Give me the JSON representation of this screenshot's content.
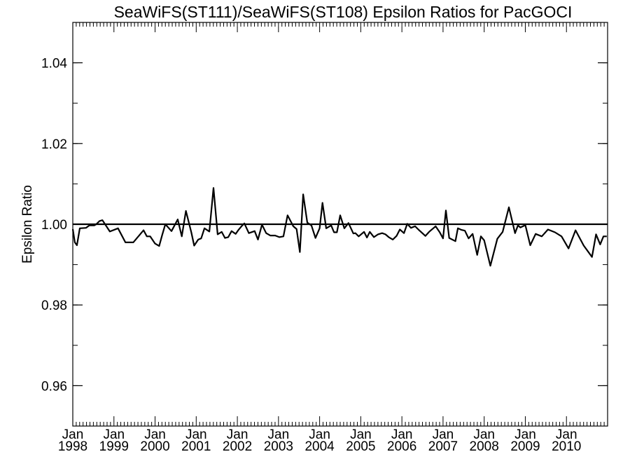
{
  "chart_data": {
    "type": "line",
    "title": "SeaWiFS(ST111)/SeaWiFS(ST108)  Epsilon Ratios for PacGOCI",
    "ylabel": "Epsilon Ratio",
    "xlabel": "",
    "xlim": [
      1998.0,
      2011.0
    ],
    "ylim": [
      0.95,
      1.05
    ],
    "yticks": [
      0.96,
      0.98,
      1.0,
      1.02,
      1.04
    ],
    "ytick_labels": [
      "0.96",
      "0.98",
      "1.00",
      "1.02",
      "1.04"
    ],
    "xtick_labels": [
      {
        "month": "Jan",
        "year": "1998"
      },
      {
        "month": "Jan",
        "year": "1999"
      },
      {
        "month": "Jan",
        "year": "2000"
      },
      {
        "month": "Jan",
        "year": "2001"
      },
      {
        "month": "Jan",
        "year": "2002"
      },
      {
        "month": "Jan",
        "year": "2003"
      },
      {
        "month": "Jan",
        "year": "2004"
      },
      {
        "month": "Jan",
        "year": "2005"
      },
      {
        "month": "Jan",
        "year": "2006"
      },
      {
        "month": "Jan",
        "year": "2007"
      },
      {
        "month": "Jan",
        "year": "2008"
      },
      {
        "month": "Jan",
        "year": "2009"
      },
      {
        "month": "Jan",
        "year": "2010"
      }
    ],
    "reference_line": 1.0,
    "grid": false,
    "series": [
      {
        "x": [
          1998.0,
          1998.05,
          1998.1,
          1998.17,
          1998.32,
          1998.4,
          1998.52,
          1998.57,
          1998.65,
          1998.72,
          1998.9,
          1999.1,
          1999.28,
          1999.47,
          1999.72,
          1999.8,
          1999.88,
          2000.0,
          2000.1,
          2000.17,
          2000.25,
          2000.4,
          2000.55,
          2000.65,
          2000.75,
          2000.88,
          2000.95,
          2001.05,
          2001.12,
          2001.2,
          2001.32,
          2001.42,
          2001.52,
          2001.62,
          2001.7,
          2001.78,
          2001.86,
          2001.96,
          2002.02,
          2002.1,
          2002.17,
          2002.28,
          2002.42,
          2002.5,
          2002.6,
          2002.7,
          2002.8,
          2002.92,
          2003.02,
          2003.12,
          2003.22,
          2003.36,
          2003.44,
          2003.52,
          2003.6,
          2003.7,
          2003.8,
          2003.9,
          2004.0,
          2004.07,
          2004.16,
          2004.28,
          2004.35,
          2004.42,
          2004.5,
          2004.6,
          2004.7,
          2004.82,
          2004.87,
          2004.95,
          2005.08,
          2005.15,
          2005.22,
          2005.32,
          2005.42,
          2005.52,
          2005.6,
          2005.68,
          2005.78,
          2005.87,
          2005.95,
          2006.05,
          2006.13,
          2006.22,
          2006.32,
          2006.42,
          2006.57,
          2006.67,
          2006.82,
          2006.92,
          2007.0,
          2007.07,
          2007.15,
          2007.3,
          2007.36,
          2007.45,
          2007.53,
          2007.62,
          2007.72,
          2007.83,
          2007.92,
          2008.0,
          2008.15,
          2008.32,
          2008.45,
          2008.6,
          2008.75,
          2008.82,
          2008.88,
          2009.0,
          2009.12,
          2009.25,
          2009.4,
          2009.55,
          2009.72,
          2009.88,
          2010.05,
          2010.22,
          2010.42,
          2010.62,
          2010.72,
          2010.82,
          2010.9,
          2010.98
        ],
        "y": [
          0.9988,
          0.9955,
          0.9948,
          0.999,
          0.9991,
          0.9997,
          0.9997,
          1.0,
          1.0008,
          1.001,
          0.9982,
          0.999,
          0.9955,
          0.9955,
          0.9985,
          0.997,
          0.997,
          0.9952,
          0.9946,
          0.9972,
          1.0,
          0.9983,
          1.0012,
          0.997,
          1.0033,
          0.998,
          0.9947,
          0.9962,
          0.9965,
          0.999,
          0.9982,
          1.009,
          0.9975,
          0.9981,
          0.9966,
          0.9968,
          0.9983,
          0.9976,
          0.9985,
          0.9995,
          1.0002,
          0.9978,
          0.9983,
          0.9962,
          0.9999,
          0.9978,
          0.9972,
          0.9972,
          0.9968,
          0.997,
          1.0022,
          0.9995,
          0.9988,
          0.9931,
          1.0074,
          1.0004,
          0.9997,
          0.9966,
          0.999,
          1.0053,
          0.999,
          0.9997,
          0.998,
          0.998,
          1.0022,
          0.999,
          1.0003,
          0.9977,
          0.9978,
          0.997,
          0.9981,
          0.9967,
          0.9981,
          0.9968,
          0.9975,
          0.9978,
          0.9975,
          0.9968,
          0.9962,
          0.9971,
          0.9987,
          0.9978,
          1.0001,
          0.9991,
          0.9995,
          0.9985,
          0.9971,
          0.9982,
          0.9995,
          0.998,
          0.9965,
          1.0034,
          0.9966,
          0.9958,
          0.999,
          0.9986,
          0.9984,
          0.9965,
          0.9976,
          0.9924,
          0.997,
          0.996,
          0.9897,
          0.9964,
          0.9981,
          1.0042,
          0.9978,
          0.9997,
          0.9992,
          0.9998,
          0.9948,
          0.9976,
          0.997,
          0.9987,
          0.998,
          0.997,
          0.994,
          0.9985,
          0.9947,
          0.9919,
          0.9975,
          0.995,
          0.997,
          0.997
        ]
      }
    ]
  }
}
